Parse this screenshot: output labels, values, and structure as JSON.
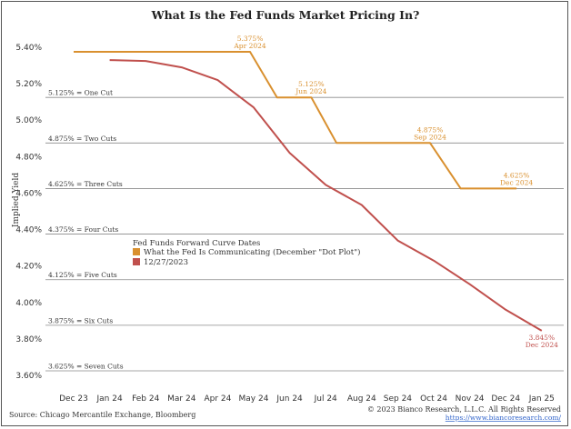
{
  "chart_data": {
    "type": "line",
    "title": "What Is the Fed Funds Market Pricing In?",
    "ylabel": "Implied Yield",
    "xlabel": "",
    "ylim": [
      3.6,
      5.45
    ],
    "yticks": [
      "5.40%",
      "5.20%",
      "5.00%",
      "4.80%",
      "4.60%",
      "4.40%",
      "4.20%",
      "4.00%",
      "3.80%",
      "3.60%"
    ],
    "ytick_values": [
      5.4,
      5.2,
      5.0,
      4.8,
      4.6,
      4.4,
      4.2,
      4.0,
      3.8,
      3.6
    ],
    "categories": [
      "Dec 23",
      "Jan 24",
      "Feb 24",
      "Mar 24",
      "Apr 24",
      "May 24",
      "Jun 24",
      "Jul 24",
      "Aug 24",
      "Sep 24",
      "Oct 24",
      "Nov 24",
      "Dec 24",
      "Jan 25"
    ],
    "grid": false,
    "reference_lines": [
      {
        "label": "5.125% = One Cut",
        "value": 5.125
      },
      {
        "label": "4.875% = Two Cuts",
        "value": 4.875
      },
      {
        "label": "4.625% = Three Cuts",
        "value": 4.625
      },
      {
        "label": "4.375% = Four Cuts",
        "value": 4.375
      },
      {
        "label": "4.125% = Five Cuts",
        "value": 4.125
      },
      {
        "label": "3.875% = Six Cuts",
        "value": 3.875
      },
      {
        "label": "3.625% = Seven Cuts",
        "value": 3.625
      }
    ],
    "legend_title": "Fed Funds Forward Curve Dates",
    "legend_placement": "center-left",
    "series": [
      {
        "name": "What the Fed Is Communicating (December \"Dot Plot\")",
        "color": "#d9902f",
        "points": [
          [
            0,
            5.375
          ],
          [
            4.9,
            5.375
          ],
          [
            5.65,
            5.125
          ],
          [
            6.6,
            5.125
          ],
          [
            7.3,
            4.875
          ],
          [
            9.0,
            4.875
          ],
          [
            9.9,
            4.875
          ],
          [
            10.75,
            4.625
          ],
          [
            12.3,
            4.625
          ]
        ]
      },
      {
        "name": "12/27/2023",
        "color": "#c0504d",
        "points": [
          [
            1.0,
            5.33
          ],
          [
            2.0,
            5.325
          ],
          [
            3.0,
            5.29
          ],
          [
            4.0,
            5.22
          ],
          [
            5.0,
            5.07
          ],
          [
            6.0,
            4.82
          ],
          [
            7.0,
            4.645
          ],
          [
            8.0,
            4.535
          ],
          [
            9.0,
            4.34
          ],
          [
            10.0,
            4.23
          ],
          [
            11.0,
            4.1
          ],
          [
            12.0,
            3.96
          ],
          [
            13.0,
            3.845
          ]
        ]
      }
    ],
    "annotations": [
      {
        "value": "5.375%",
        "date": "Apr 2024",
        "series": 0,
        "at": [
          4.9,
          5.375
        ]
      },
      {
        "value": "5.125%",
        "date": "Jun 2024",
        "series": 0,
        "at": [
          6.6,
          5.125
        ]
      },
      {
        "value": "4.875%",
        "date": "Sep 2024",
        "series": 0,
        "at": [
          9.9,
          4.875
        ]
      },
      {
        "value": "4.625%",
        "date": "Dec 2024",
        "series": 0,
        "at": [
          12.3,
          4.625
        ]
      },
      {
        "value": "3.845%",
        "date": "Dec 2024",
        "series": 1,
        "at": [
          13.0,
          3.845
        ]
      }
    ]
  },
  "footer": {
    "source": "Source: Chicago Mercantile Exchange, Bloomberg",
    "copyright": "© 2023 Bianco Research, L.L.C. All Rights Reserved",
    "url": "https://www.biancoresearch.com/"
  }
}
